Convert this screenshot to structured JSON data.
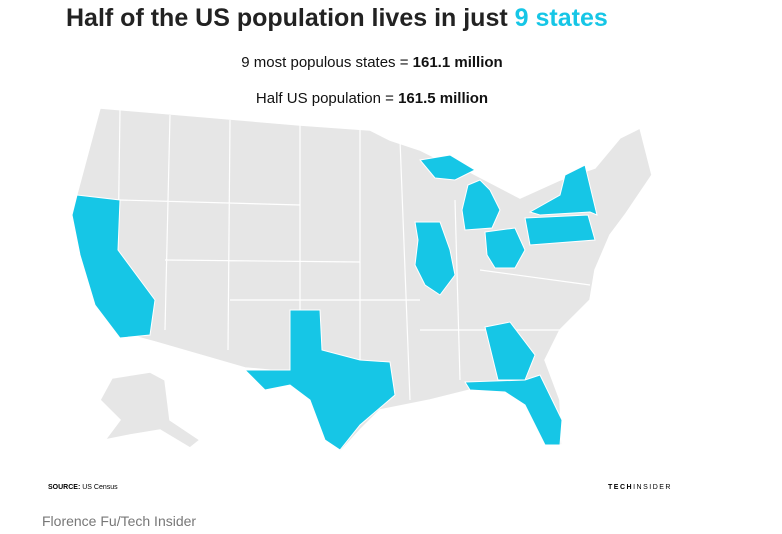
{
  "header": {
    "title": "Half of the US population lives in just ",
    "title_highlight": "9 states",
    "line1_label": "9 most populous states = ",
    "line1_value": "161.1 million",
    "line2_label": "Half US population = ",
    "line2_value": "161.5 million"
  },
  "footer": {
    "source_label": "SOURCE:",
    "source": "US Census",
    "brand_bold": "TECH",
    "brand": "INSIDER"
  },
  "caption": "Florence Fu/Tech Insider"
}
